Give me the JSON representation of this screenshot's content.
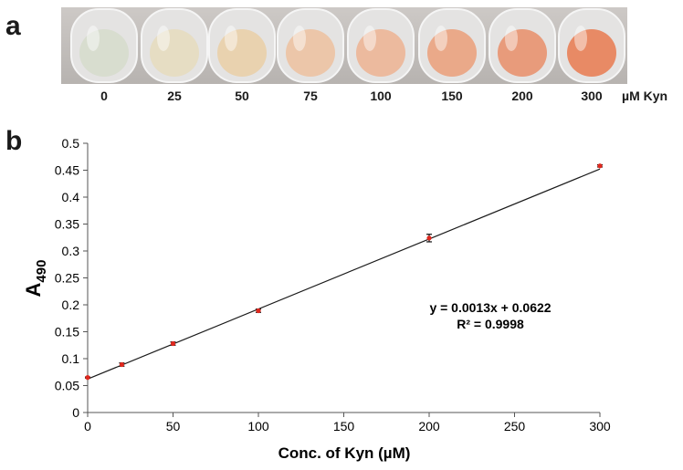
{
  "panel_a": {
    "letter": "a",
    "concentrations": [
      "0",
      "25",
      "50",
      "75",
      "100",
      "150",
      "200",
      "300"
    ],
    "unit": "µM Kyn",
    "well_colors": [
      "#d6dccd",
      "#e6dcc0",
      "#e9cfaa",
      "#ecc2a3",
      "#ecb597",
      "#eaa27f",
      "#e89270",
      "#e88058"
    ]
  },
  "panel_b": {
    "letter": "b"
  },
  "chart_data": {
    "type": "scatter",
    "xlabel": "Conc. of Kyn (µM)",
    "ylabel_main": "A",
    "ylabel_sub": "490",
    "xlim": [
      0,
      300
    ],
    "ylim": [
      0,
      0.5
    ],
    "xticks": [
      "0",
      "50",
      "100",
      "150",
      "200",
      "250",
      "300"
    ],
    "yticks": [
      "0",
      "0.05",
      "0.1",
      "0.15",
      "0.2",
      "0.25",
      "0.3",
      "0.35",
      "0.4",
      "0.45",
      "0.5"
    ],
    "points": [
      {
        "x": 0,
        "y": 0.065,
        "err": 0.001
      },
      {
        "x": 20,
        "y": 0.089,
        "err": 0.003
      },
      {
        "x": 50,
        "y": 0.128,
        "err": 0.003
      },
      {
        "x": 100,
        "y": 0.189,
        "err": 0.003
      },
      {
        "x": 200,
        "y": 0.324,
        "err": 0.007
      },
      {
        "x": 300,
        "y": 0.458,
        "err": 0.002
      }
    ],
    "fit": {
      "slope": 0.0013,
      "intercept": 0.0622
    },
    "equation": "y = 0.0013x + 0.0622",
    "r_squared": "R² = 0.9998",
    "marker_color": "#e0281e",
    "line_color": "#1a1a1a"
  }
}
